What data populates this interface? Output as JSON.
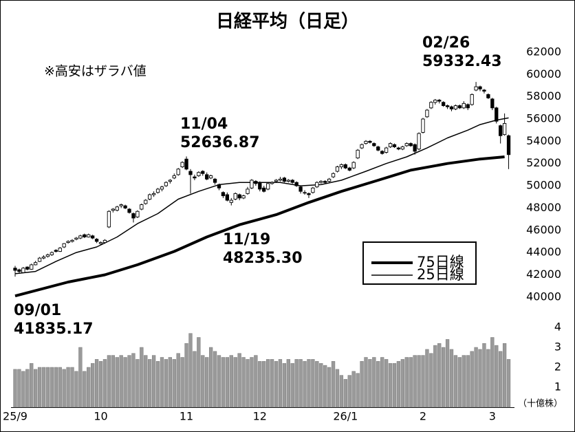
{
  "chart_data": {
    "type": "candlestick",
    "title": "日経平均（日足）",
    "note": "※高安はザラバ値",
    "categories": [
      "25/9",
      null,
      null,
      null,
      null,
      null,
      null,
      null,
      null,
      null,
      null,
      null,
      null,
      null,
      null,
      null,
      null,
      null,
      null,
      null,
      null,
      "10",
      null,
      null,
      null,
      null,
      null,
      null,
      null,
      null,
      null,
      null,
      null,
      null,
      null,
      null,
      null,
      null,
      null,
      null,
      null,
      null,
      "11",
      null,
      null,
      null,
      null,
      null,
      null,
      null,
      null,
      null,
      null,
      null,
      null,
      null,
      null,
      null,
      null,
      null,
      "12",
      null,
      null,
      null,
      null,
      null,
      null,
      null,
      null,
      null,
      null,
      null,
      null,
      null,
      null,
      null,
      null,
      null,
      null,
      null,
      null,
      "26/1",
      null,
      null,
      null,
      null,
      null,
      null,
      null,
      null,
      null,
      null,
      null,
      null,
      null,
      null,
      null,
      null,
      null,
      null,
      "2",
      null,
      null,
      null,
      null,
      null,
      null,
      null,
      null,
      null,
      null,
      null,
      null,
      null,
      null,
      null,
      null,
      "3",
      null,
      null,
      null,
      null
    ],
    "open": [
      42600,
      42450,
      42200,
      42700,
      42500,
      42900,
      43200,
      43500,
      43650,
      43800,
      44200,
      44100,
      44500,
      44900,
      45000,
      45200,
      45300,
      45600,
      45400,
      45500,
      45200,
      44800,
      44900,
      46300,
      47800,
      47800,
      48200,
      48200,
      47900,
      47500,
      47200,
      47900,
      48400,
      48800,
      49200,
      49400,
      49700,
      50000,
      50400,
      50700,
      51000,
      51700,
      52400,
      51300,
      50800,
      50900,
      51300,
      51000,
      50700,
      50600,
      50100,
      49400,
      49200,
      48500,
      48800,
      49200,
      48900,
      49300,
      49800,
      50400,
      50300,
      49800,
      49700,
      50200,
      50400,
      50500,
      50700,
      50400,
      50500,
      50300,
      49900,
      49400,
      49300,
      49400,
      49900,
      50300,
      50400,
      50400,
      50800,
      51300,
      51700,
      51900,
      51600,
      51600,
      52500,
      53400,
      53800,
      54000,
      53800,
      53500,
      53100,
      53000,
      53500,
      53700,
      53400,
      53300,
      53600,
      53800,
      53700,
      53300,
      54800,
      56200,
      57000,
      57500,
      57700,
      57500,
      57200,
      57100,
      56900,
      57200,
      57000,
      57300,
      57300,
      58600,
      58900,
      58600,
      58200,
      57800,
      57000,
      55400,
      54600,
      54500
    ],
    "high": [
      42800,
      42550,
      42700,
      42750,
      43000,
      43250,
      43600,
      43750,
      43900,
      44100,
      44300,
      44500,
      44850,
      45100,
      45200,
      45400,
      45600,
      45700,
      45700,
      45600,
      45300,
      45000,
      45200,
      47800,
      48000,
      48200,
      48400,
      48300,
      48000,
      47600,
      47800,
      48400,
      48800,
      49300,
      49500,
      49800,
      50000,
      50400,
      50600,
      51100,
      51600,
      52200,
      52636.87,
      51500,
      51000,
      51300,
      51400,
      51200,
      51000,
      50700,
      50200,
      49500,
      49400,
      48900,
      49400,
      49300,
      49200,
      49900,
      50600,
      50500,
      50400,
      50000,
      50300,
      50400,
      50600,
      50800,
      50800,
      50600,
      50600,
      50400,
      50000,
      49600,
      49400,
      49900,
      50400,
      50500,
      50500,
      50700,
      51200,
      51800,
      52000,
      52000,
      51700,
      52200,
      53300,
      53800,
      54100,
      54100,
      53900,
      53600,
      53200,
      53500,
      53900,
      53800,
      53500,
      53600,
      53900,
      53900,
      53800,
      54800,
      56100,
      56900,
      57600,
      57800,
      57800,
      57600,
      57300,
      57200,
      57300,
      57300,
      57600,
      57400,
      58300,
      59332.43,
      59000,
      58700,
      58300,
      57900,
      57100,
      55500,
      56500,
      54600
    ],
    "low": [
      41835.17,
      42150,
      42150,
      42400,
      42450,
      42850,
      43150,
      43400,
      43550,
      43700,
      44000,
      44050,
      44400,
      44800,
      44900,
      45100,
      45200,
      45300,
      45350,
      45200,
      44850,
      44700,
      44800,
      46200,
      47600,
      47700,
      48000,
      47900,
      47500,
      46700,
      47100,
      47800,
      48300,
      48700,
      49000,
      49300,
      49500,
      49900,
      50200,
      50600,
      50900,
      51600,
      51400,
      49300,
      50500,
      50800,
      50900,
      50500,
      50600,
      50100,
      49600,
      48900,
      48600,
      48235.3,
      48700,
      48700,
      48800,
      49200,
      49700,
      50000,
      49500,
      49400,
      49600,
      50100,
      50300,
      50400,
      50300,
      50300,
      50200,
      49900,
      49300,
      49200,
      48900,
      49300,
      49800,
      50200,
      50200,
      50300,
      50700,
      51200,
      51500,
      51500,
      51300,
      51500,
      52400,
      53300,
      53700,
      53800,
      53500,
      53100,
      52800,
      52900,
      53400,
      53400,
      53200,
      53200,
      53500,
      53500,
      52800,
      53200,
      54700,
      56100,
      56900,
      57300,
      57400,
      57100,
      56900,
      56700,
      56800,
      56900,
      56900,
      56800,
      57200,
      58500,
      58500,
      58300,
      57800,
      56800,
      55600,
      53800,
      54500,
      51500
    ],
    "close": [
      42400,
      42300,
      42600,
      42500,
      42900,
      43100,
      43500,
      43600,
      43800,
      44000,
      44100,
      44400,
      44800,
      45000,
      45100,
      45300,
      45500,
      45400,
      45600,
      45300,
      45000,
      44900,
      45100,
      47700,
      47900,
      48100,
      48300,
      48000,
      47600,
      47100,
      47700,
      48300,
      48700,
      49200,
      49300,
      49700,
      49900,
      50300,
      50500,
      50900,
      51500,
      52100,
      51500,
      51000,
      50700,
      51200,
      51100,
      50600,
      50900,
      50300,
      49800,
      49100,
      48700,
      48700,
      49300,
      48900,
      49100,
      49700,
      50500,
      50200,
      49700,
      49500,
      50200,
      50300,
      50500,
      50600,
      50400,
      50500,
      50300,
      50000,
      49500,
      49400,
      49200,
      49800,
      50300,
      50400,
      50300,
      50600,
      51100,
      51700,
      51900,
      51600,
      51400,
      52100,
      53200,
      53700,
      54000,
      53900,
      53600,
      53200,
      52900,
      53400,
      53800,
      53500,
      53300,
      53500,
      53800,
      53600,
      53100,
      54700,
      56000,
      56800,
      57500,
      57700,
      57600,
      57200,
      57100,
      56900,
      57200,
      57000,
      57400,
      57000,
      58200,
      58900,
      58700,
      58500,
      57900,
      57000,
      55800,
      54500,
      55600,
      52800
    ],
    "ylim": [
      39000,
      64000
    ],
    "yticks": [
      40000,
      42000,
      44000,
      46000,
      48000,
      50000,
      52000,
      54000,
      56000,
      58000,
      60000,
      62000
    ],
    "series": [
      {
        "name": "75日線",
        "color": "#000000",
        "width": 4,
        "x": [
          0,
          13,
          22,
          30,
          39,
          47,
          55,
          64,
          72,
          80,
          89,
          97,
          106,
          114,
          120
        ],
        "values": [
          40100,
          41350,
          42000,
          42900,
          44100,
          45400,
          46500,
          47400,
          48500,
          49500,
          50500,
          51400,
          52000,
          52400,
          52600
        ]
      },
      {
        "name": "25日線",
        "color": "#000000",
        "width": 1.5,
        "x": [
          0,
          5,
          10,
          15,
          20,
          25,
          30,
          35,
          40,
          45,
          50,
          55,
          60,
          65,
          70,
          75,
          80,
          86,
          91,
          96,
          101,
          106,
          111,
          114,
          118,
          121
        ],
        "values": [
          42100,
          42300,
          43200,
          44000,
          44500,
          45400,
          46600,
          47500,
          48800,
          49500,
          50100,
          50300,
          50300,
          50300,
          50000,
          50100,
          50500,
          51300,
          52000,
          52600,
          53400,
          54300,
          55000,
          55500,
          55900,
          56100
        ]
      }
    ],
    "volume": {
      "unit": "（十億株）",
      "color": "#9a9a9a",
      "ylim": [
        0,
        4.5
      ],
      "yticks": [
        1,
        2,
        3,
        4
      ],
      "values": [
        1.9,
        1.9,
        1.8,
        1.9,
        2.2,
        1.9,
        2.0,
        2.0,
        2.0,
        2.0,
        2.0,
        2.0,
        1.9,
        2.0,
        2.0,
        1.8,
        3.0,
        1.8,
        2.0,
        2.2,
        2.4,
        2.3,
        2.4,
        2.6,
        2.6,
        2.5,
        2.6,
        2.5,
        2.6,
        2.7,
        2.4,
        3.0,
        2.6,
        2.4,
        2.6,
        2.3,
        2.5,
        2.4,
        2.5,
        2.4,
        2.7,
        2.5,
        3.2,
        3.7,
        2.8,
        3.5,
        2.6,
        2.5,
        3.0,
        2.8,
        2.6,
        2.5,
        2.5,
        2.6,
        2.5,
        2.7,
        2.5,
        2.4,
        2.5,
        2.6,
        2.3,
        2.3,
        2.4,
        2.4,
        2.3,
        2.4,
        2.2,
        2.4,
        2.2,
        2.4,
        2.4,
        2.3,
        2.4,
        2.4,
        2.3,
        2.2,
        2.1,
        2.0,
        2.3,
        1.9,
        1.6,
        1.4,
        1.6,
        1.8,
        1.7,
        2.3,
        2.5,
        2.4,
        2.5,
        2.3,
        2.5,
        2.4,
        2.2,
        2.2,
        2.3,
        2.4,
        2.5,
        2.5,
        2.6,
        2.6,
        2.6,
        2.9,
        2.7,
        3.1,
        3.2,
        3.0,
        3.4,
        2.9,
        2.6,
        2.5,
        2.6,
        2.6,
        2.8,
        3.0,
        2.9,
        3.2,
        2.9,
        3.5,
        3.1,
        2.8,
        3.2,
        2.4
      ]
    },
    "annotations": [
      {
        "date": "09/01",
        "value": 41835.17
      },
      {
        "date": "11/04",
        "value": 52636.87
      },
      {
        "date": "11/19",
        "value": 48235.3,
        "label": "48235.30"
      },
      {
        "date": "02/26",
        "value": 59332.43
      }
    ]
  }
}
